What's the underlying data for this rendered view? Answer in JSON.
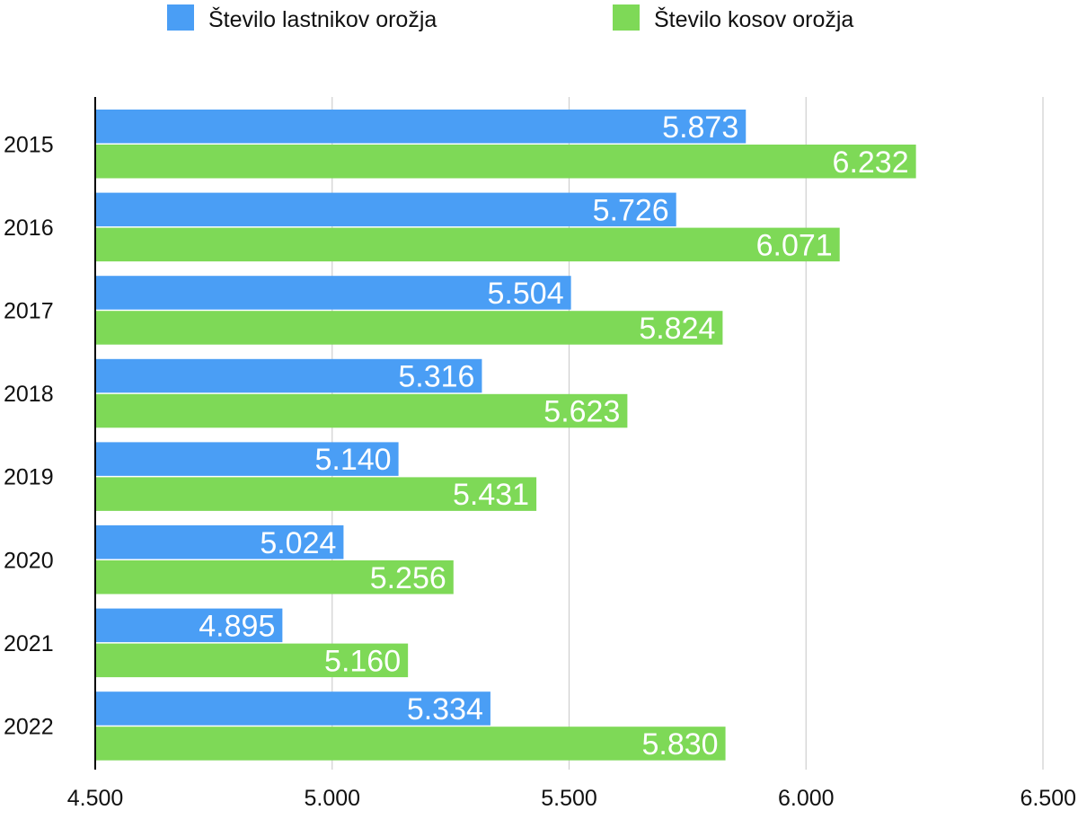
{
  "chart_data": {
    "type": "bar",
    "orientation": "horizontal",
    "categories": [
      "2015",
      "2016",
      "2017",
      "2018",
      "2019",
      "2020",
      "2021",
      "2022"
    ],
    "series": [
      {
        "name": "Število lastnikov orožja",
        "color": "#4A9EF5",
        "values": [
          5873,
          5726,
          5504,
          5316,
          5140,
          5024,
          4895,
          5334
        ],
        "labels": [
          "5.873",
          "5.726",
          "5.504",
          "5.316",
          "5.140",
          "5.024",
          "4.895",
          "5.334"
        ]
      },
      {
        "name": "Število kosov orožja",
        "color": "#7ED957",
        "values": [
          6232,
          6071,
          5824,
          5623,
          5431,
          5256,
          5160,
          5830
        ],
        "labels": [
          "6.232",
          "6.071",
          "5.824",
          "5.623",
          "5.431",
          "5.256",
          "5.160",
          "5.830"
        ]
      }
    ],
    "xlim": [
      4500,
      6500
    ],
    "xticks": [
      4500,
      5000,
      5500,
      6000,
      6500
    ],
    "xtick_labels": [
      "4.500",
      "5.000",
      "5.500",
      "6.000",
      "6.500"
    ],
    "grid": true,
    "legend_position": "top"
  }
}
